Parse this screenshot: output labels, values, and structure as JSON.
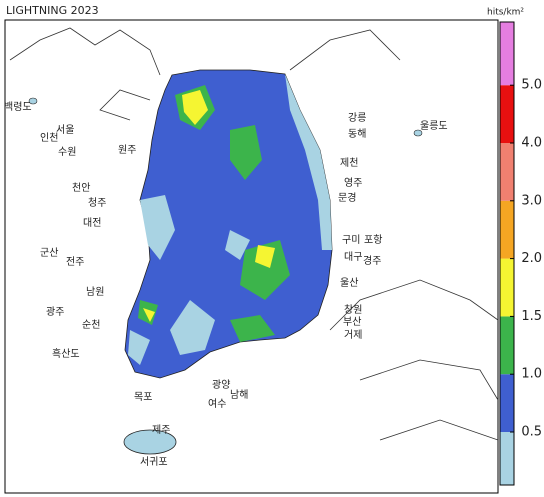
{
  "header": {
    "title": "LIGHTNING 2023",
    "unit": "hits/km²"
  },
  "legend": {
    "colors": [
      "#a9d3e3",
      "#3f5fd0",
      "#3cb44b",
      "#f5f532",
      "#f5a623",
      "#f08070",
      "#e81010",
      "#e57ee0"
    ],
    "ticks": [
      0.5,
      {
        "value": 1,
        "label": "1.0"
      },
      1.5,
      {
        "value": 2,
        "label": "2.0"
      },
      {
        "value": 3,
        "label": "3.0"
      },
      {
        "value": 4,
        "label": "4.0"
      },
      {
        "value": 5,
        "label": "5.0"
      }
    ]
  },
  "places": [
    "백령도",
    "인천",
    "서울",
    "수원",
    "원주",
    "강릉",
    "동해",
    "울릉도",
    "제천",
    "영주",
    "문경",
    "천안",
    "청주",
    "대전",
    "구미",
    "포항",
    "대구",
    "경주",
    "군산",
    "전주",
    "울산",
    "남원",
    "창원",
    "광주",
    "순천",
    "부산",
    "거제",
    "흑산도",
    "광양",
    "남해",
    "목포",
    "여수",
    "제주",
    "서귀포"
  ]
}
